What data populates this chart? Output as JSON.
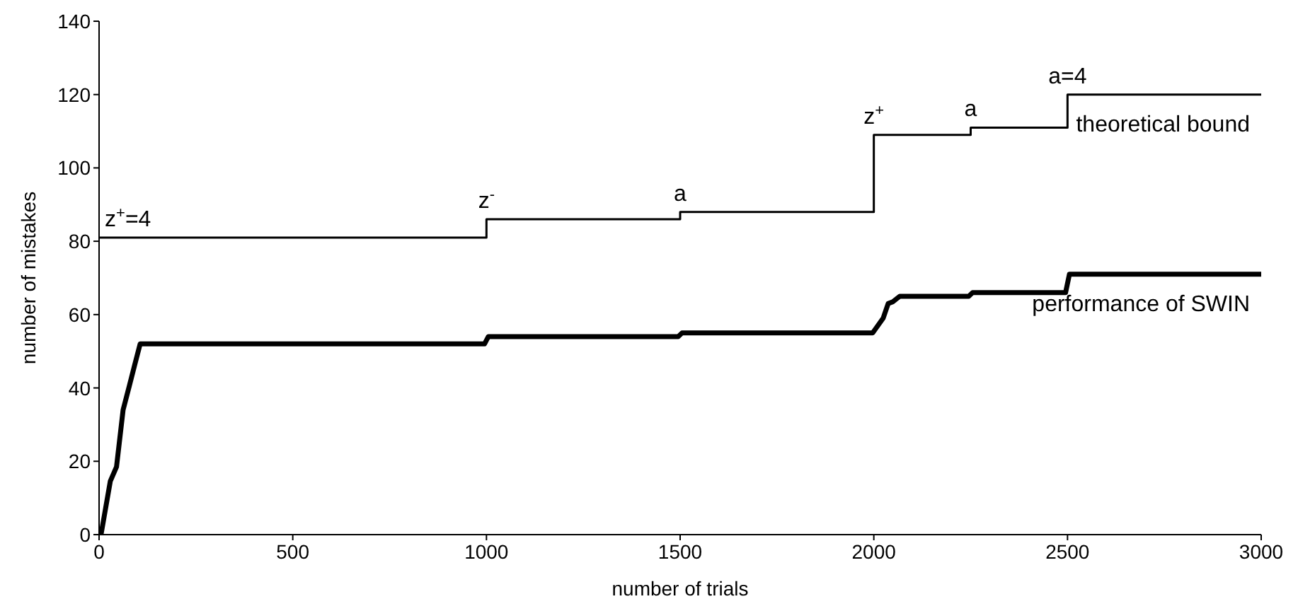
{
  "chart_data": {
    "type": "line",
    "xlabel": "number of trials",
    "ylabel": "number of mistakes",
    "xlim": [
      0,
      3000
    ],
    "xticks": [
      0,
      500,
      1000,
      1500,
      2000,
      2500,
      3000
    ],
    "ylim": [
      0,
      140
    ],
    "yticks": [
      0,
      20,
      40,
      60,
      80,
      100,
      120,
      140
    ],
    "grid": false,
    "legend": false,
    "marker": "none",
    "series": [
      {
        "name": "theoretical bound",
        "type": "step",
        "color": "#000000",
        "x": [
          0,
          1000,
          1500,
          2000,
          2250,
          2500,
          3000
        ],
        "values": [
          81,
          86,
          88,
          109,
          111,
          120,
          120
        ]
      },
      {
        "name": "performance of SWIN",
        "type": "line",
        "color": "#000000",
        "x": [
          0,
          5,
          29,
          45,
          62,
          78,
          90,
          106,
          995,
          1005,
          1495,
          1505,
          1997,
          2024,
          2037,
          2049,
          2067,
          2083,
          2245,
          2255,
          2495,
          2505,
          3000
        ],
        "values": [
          0,
          0,
          14.6,
          18.5,
          34,
          40.5,
          45.5,
          52,
          52,
          54,
          54,
          55,
          55,
          59,
          63,
          63.5,
          65,
          65,
          65,
          66,
          66,
          71,
          71
        ]
      }
    ],
    "annotations": [
      {
        "text": "z$^{+}$=4",
        "x": 0,
        "y": 81
      },
      {
        "text": "z$^{-}$",
        "x": 1000,
        "y": 86
      },
      {
        "text": "a",
        "x": 1500,
        "y": 88
      },
      {
        "text": "z$^{+}$",
        "x": 2000,
        "y": 109
      },
      {
        "text": "a",
        "x": 2250,
        "y": 111
      },
      {
        "text": "a=4",
        "x": 2500,
        "y": 120
      }
    ]
  }
}
